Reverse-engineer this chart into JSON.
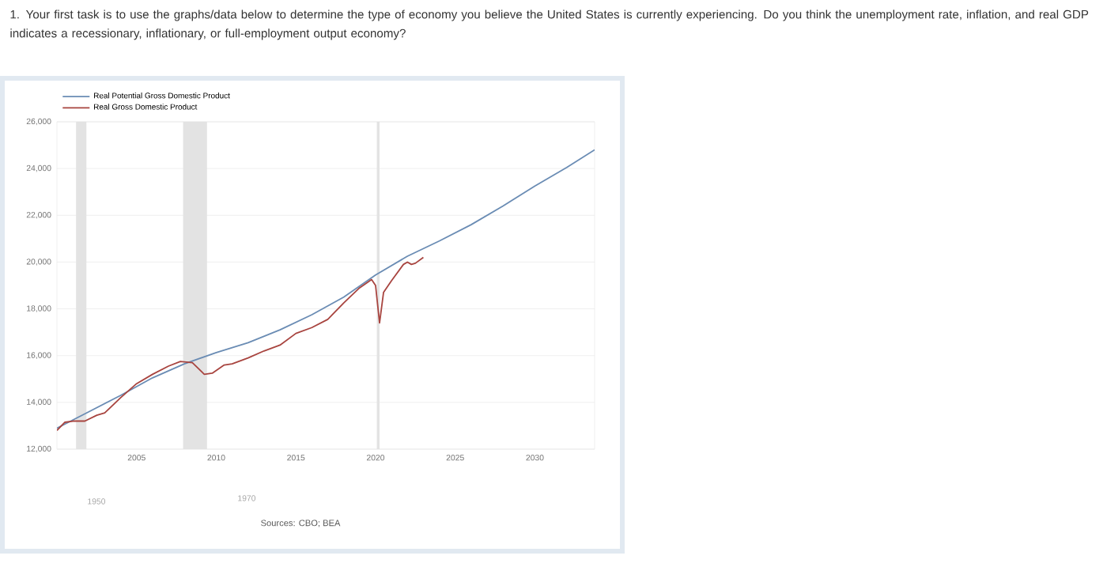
{
  "chart_data": {
    "type": "line",
    "title": "1. Your first task is to use the graphs/data below to determine the type of economy you believe the United States is currently experiencing. Do you think the unemployment rate, inflation, and real GDP indicates a recessionary, inflationary, or full-employment output economy?",
    "series": [
      {
        "name": "Real Potential Gross Domestic Product",
        "color": "#6a8cb4",
        "x": [
          2000,
          2002,
          2004,
          2006,
          2008,
          2010,
          2012,
          2014,
          2016,
          2018,
          2020,
          2022,
          2024,
          2026,
          2028,
          2030,
          2032,
          2033.75
        ],
        "values": [
          12900,
          13600,
          14300,
          15050,
          15650,
          16130,
          16550,
          17100,
          17750,
          18500,
          19450,
          20250,
          20900,
          21600,
          22400,
          23250,
          24050,
          24800
        ]
      },
      {
        "name": "Real Gross Domestic Product",
        "color": "#a8443f",
        "x": [
          2000,
          2000.5,
          2001,
          2001.75,
          2002.5,
          2003,
          2004,
          2005,
          2006,
          2007,
          2007.75,
          2008.5,
          2009.25,
          2009.75,
          2010.5,
          2011,
          2012,
          2013,
          2014,
          2015,
          2016,
          2017,
          2018,
          2019,
          2019.75,
          2020,
          2020.25,
          2020.5,
          2021,
          2021.75,
          2022,
          2022.25,
          2022.5,
          2023
        ],
        "values": [
          12800,
          13150,
          13200,
          13200,
          13450,
          13550,
          14200,
          14800,
          15200,
          15550,
          15750,
          15700,
          15200,
          15250,
          15600,
          15650,
          15900,
          16200,
          16450,
          16950,
          17200,
          17550,
          18250,
          18900,
          19250,
          19000,
          17400,
          18700,
          19200,
          19900,
          20000,
          19900,
          19950,
          20200
        ]
      }
    ],
    "xlim": [
      2000,
      2033.75
    ],
    "xticks": [
      2005,
      2010,
      2015,
      2020,
      2025,
      2030
    ],
    "ylim": [
      12000,
      26000
    ],
    "yticks": [
      {
        "value": 12000,
        "label": "12,000"
      },
      {
        "value": 14000,
        "label": "14,000"
      },
      {
        "value": 16000,
        "label": "16,000"
      },
      {
        "value": 18000,
        "label": "18,000"
      },
      {
        "value": 20000,
        "label": "20,000"
      },
      {
        "value": 22000,
        "label": "22,000"
      },
      {
        "value": 24000,
        "label": "24,000"
      },
      {
        "value": 26000,
        "label": "26,000"
      }
    ],
    "bands": [
      {
        "axis": "x",
        "from": 2001.2,
        "to": 2001.85,
        "color": "#e3e3e3"
      },
      {
        "axis": "x",
        "from": 2007.92,
        "to": 2009.42,
        "color": "#e3e3e3"
      },
      {
        "axis": "x",
        "from": 2020.08,
        "to": 2020.25,
        "color": "#e3e3e3"
      }
    ],
    "grid": "y",
    "legend": "top left",
    "annotations": [
      "1950",
      "1970",
      "Sources: CBO; BEA"
    ]
  }
}
